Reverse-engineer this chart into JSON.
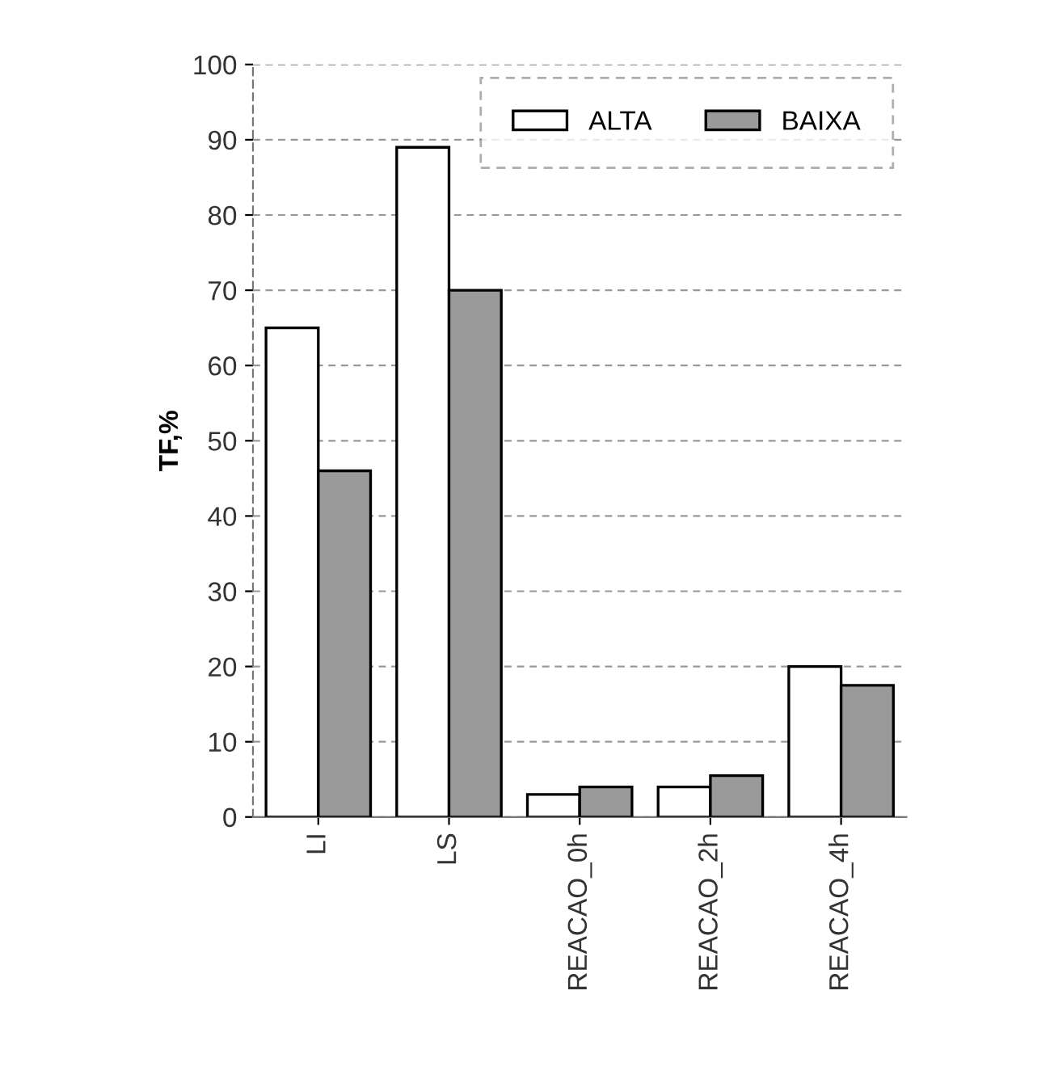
{
  "chart_data": {
    "type": "bar",
    "ylabel": "TF,%",
    "categories": [
      "LI",
      "LS",
      "REACAO_0h",
      "REACAO_2h",
      "REACAO_4h"
    ],
    "series": [
      {
        "name": "ALTA",
        "color": "#ffffff",
        "values": [
          65,
          89,
          3,
          4,
          20
        ]
      },
      {
        "name": "BAIXA",
        "color": "#9a9a9a",
        "values": [
          46,
          70,
          4,
          5.5,
          17.5
        ]
      }
    ],
    "ylim": [
      0,
      100
    ],
    "yticks": [
      0,
      10,
      20,
      30,
      40,
      50,
      60,
      70,
      80,
      90,
      100
    ],
    "grid": "y",
    "legend": "top right"
  }
}
